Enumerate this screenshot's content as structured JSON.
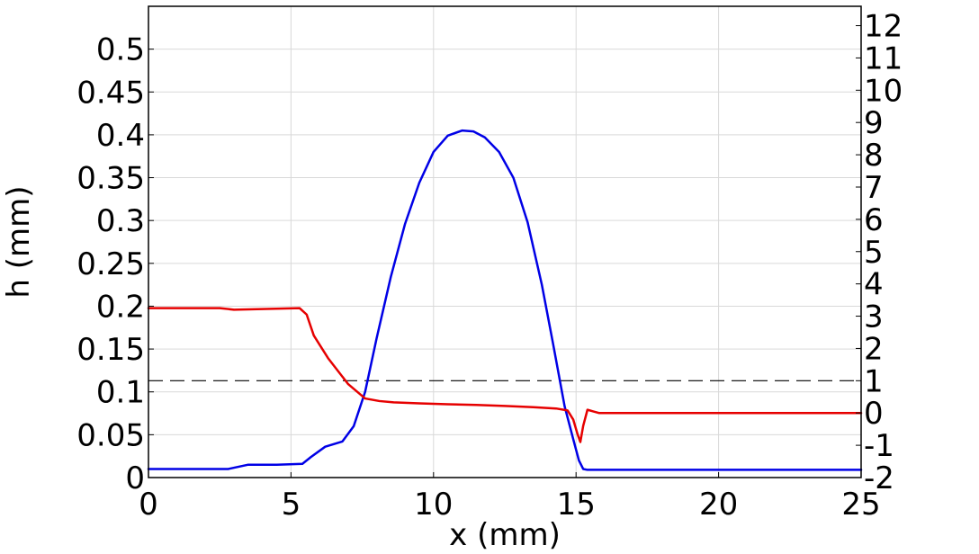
{
  "chart_data": {
    "type": "line",
    "xlabel": "x (mm)",
    "ylabel": "h (mm)",
    "xlim": [
      0,
      25
    ],
    "ylim": [
      0,
      0.55
    ],
    "y2lim": [
      -2,
      12.6
    ],
    "grid": true,
    "x_ticks": [
      "0",
      "5",
      "10",
      "15",
      "20",
      "25"
    ],
    "y_ticks": [
      "0",
      "0.05",
      "0.1",
      "0.15",
      "0.2",
      "0.25",
      "0.3",
      "0.35",
      "0.4",
      "0.45",
      "0.5"
    ],
    "y2_ticks": [
      "-2",
      "-1",
      "0",
      "1",
      "2",
      "3",
      "4",
      "5",
      "6",
      "7",
      "8",
      "9",
      "10",
      "11",
      "12"
    ],
    "colors": {
      "blue": "#0000e6",
      "red": "#e60000",
      "reference": "#000000"
    },
    "series": [
      {
        "axis": "left",
        "color": "#0000e6",
        "x": [
          0,
          2.8,
          3.5,
          4.5,
          5.4,
          5.7,
          6.2,
          6.8,
          7.2,
          7.6,
          8.0,
          8.5,
          9.0,
          9.5,
          10.0,
          10.5,
          11.0,
          11.4,
          11.8,
          12.3,
          12.8,
          13.3,
          13.8,
          14.2,
          14.6,
          14.9,
          15.1,
          15.25,
          15.4,
          16,
          20,
          25
        ],
        "y": [
          0.01,
          0.01,
          0.015,
          0.015,
          0.016,
          0.024,
          0.036,
          0.042,
          0.06,
          0.1,
          0.162,
          0.234,
          0.296,
          0.344,
          0.38,
          0.399,
          0.405,
          0.404,
          0.397,
          0.38,
          0.35,
          0.298,
          0.225,
          0.155,
          0.083,
          0.045,
          0.02,
          0.01,
          0.009,
          0.009,
          0.009,
          0.009
        ]
      },
      {
        "axis": "right",
        "color": "#e60000",
        "x": [
          0,
          2.5,
          3.0,
          5.3,
          5.55,
          5.8,
          6.3,
          7.0,
          7.6,
          8.1,
          8.6,
          9.5,
          10.5,
          11.5,
          12.5,
          13.5,
          14.3,
          14.7,
          14.9,
          15.05,
          15.15,
          15.25,
          15.4,
          15.6,
          15.8,
          18,
          21,
          25
        ],
        "y": [
          3.25,
          3.25,
          3.2,
          3.25,
          3.05,
          2.4,
          1.7,
          0.9,
          0.45,
          0.37,
          0.33,
          0.3,
          0.27,
          0.25,
          0.22,
          0.18,
          0.14,
          0.08,
          -0.2,
          -0.65,
          -0.9,
          -0.4,
          0.1,
          0.05,
          0.0,
          0.0,
          0.0,
          0.0
        ]
      }
    ],
    "reference_line": {
      "axis": "right",
      "y": 1,
      "style": "dashed"
    }
  }
}
